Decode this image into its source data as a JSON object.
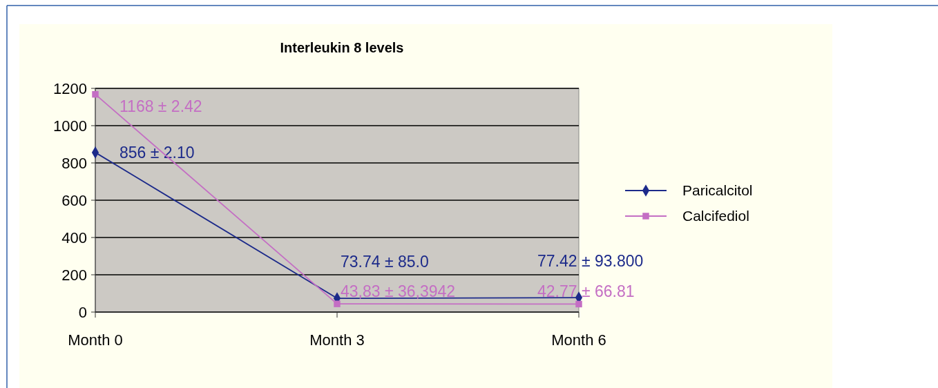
{
  "chart_data": {
    "type": "line",
    "title": "Interleukin 8 levels",
    "categories": [
      "Month 0",
      "Month 3",
      "Month 6"
    ],
    "series": [
      {
        "name": "Paricalcitol",
        "color": "#1c2a8a",
        "marker": "diamond",
        "values": [
          856,
          73.74,
          77.42
        ],
        "value_labels": [
          "856 ± 2.10",
          "73.74 ± 85.0",
          "77.42 ± 93.800"
        ]
      },
      {
        "name": "Calcifediol",
        "color": "#c46ec4",
        "marker": "square",
        "values": [
          1168,
          43.83,
          42.77
        ],
        "value_labels": [
          "1168 ± 2.42",
          "43,83 ± 36,3942",
          "42.77 ± 66.81"
        ]
      }
    ],
    "ylim": [
      0,
      1200
    ],
    "yticks": [
      0,
      200,
      400,
      600,
      800,
      1000,
      1200
    ],
    "grid": "y",
    "legend": "right"
  }
}
